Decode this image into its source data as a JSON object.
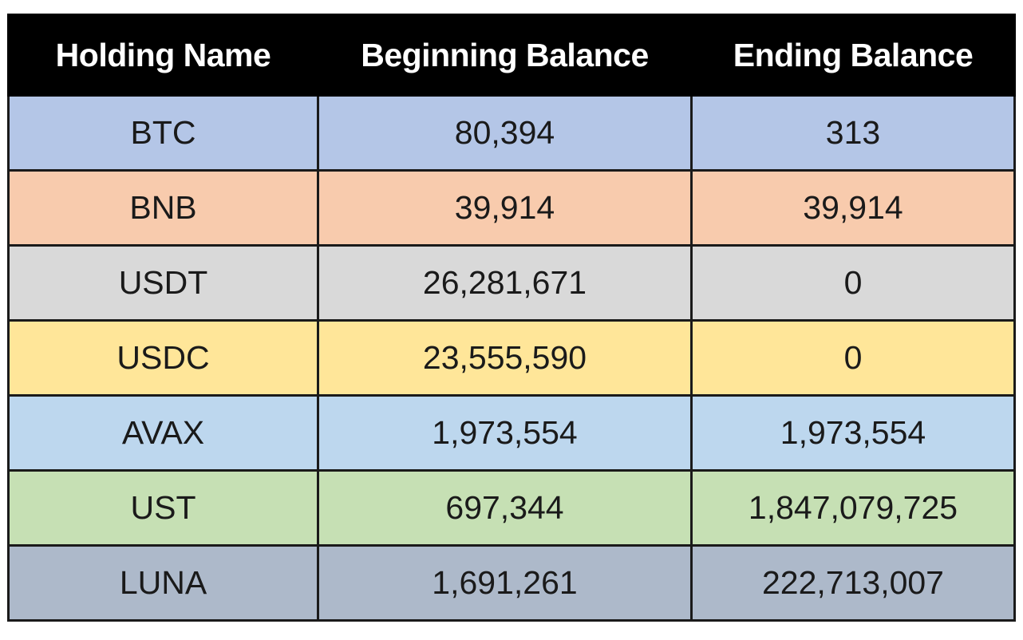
{
  "table": {
    "headers": [
      "Holding Name",
      "Beginning Balance",
      "Ending Balance"
    ],
    "rows": [
      {
        "name": "BTC",
        "beginning": "80,394",
        "ending": "313",
        "color": "#b4c6e7"
      },
      {
        "name": "BNB",
        "beginning": "39,914",
        "ending": "39,914",
        "color": "#f8cbad"
      },
      {
        "name": "USDT",
        "beginning": "26,281,671",
        "ending": "0",
        "color": "#d9d9d9"
      },
      {
        "name": "USDC",
        "beginning": "23,555,590",
        "ending": "0",
        "color": "#ffe699"
      },
      {
        "name": "AVAX",
        "beginning": "1,973,554",
        "ending": "1,973,554",
        "color": "#bdd7ee"
      },
      {
        "name": "UST",
        "beginning": "697,344",
        "ending": "1,847,079,725",
        "color": "#c6e0b4"
      },
      {
        "name": "LUNA",
        "beginning": "1,691,261",
        "ending": "222,713,007",
        "color": "#adb9ca"
      }
    ]
  }
}
